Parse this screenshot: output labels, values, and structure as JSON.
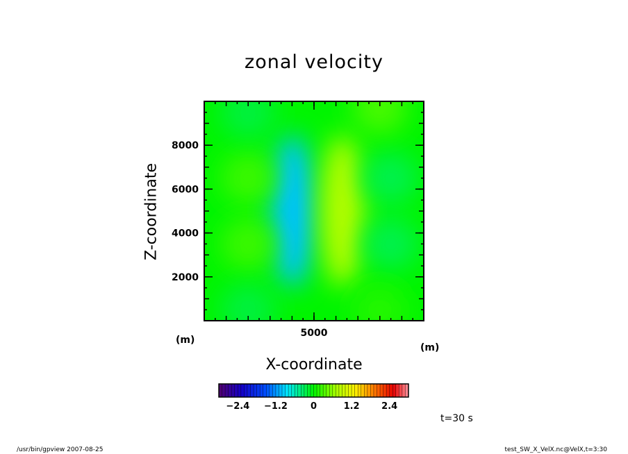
{
  "chart_data": {
    "type": "heatmap",
    "title": "zonal velocity",
    "xlabel": "X-coordinate",
    "ylabel": "Z-coordinate",
    "x_unit": "(m)",
    "y_unit": "(m)",
    "x_ticks": [
      5000
    ],
    "y_ticks": [
      2000,
      4000,
      6000,
      8000
    ],
    "xlim": [
      0,
      10000
    ],
    "ylim": [
      0,
      10000
    ],
    "colorbar": {
      "ticks": [
        "-2.4",
        "-1.2",
        "0",
        "1.2",
        "2.4"
      ],
      "range": [
        -3.0,
        3.0
      ],
      "colormap": "rainbow"
    },
    "features": [
      {
        "x": 4000,
        "z": 5000,
        "value": -1.0
      },
      {
        "x": 6300,
        "z": 5000,
        "value": 0.8
      },
      {
        "x": 2000,
        "z": 6500,
        "value": 0.25
      },
      {
        "x": 2000,
        "z": 3500,
        "value": 0.25
      },
      {
        "x": 8500,
        "z": 6500,
        "value": -0.25
      },
      {
        "x": 8500,
        "z": 3500,
        "value": -0.25
      },
      {
        "x": 2000,
        "z": 9500,
        "value": -0.2
      },
      {
        "x": 8000,
        "z": 9700,
        "value": 0.3
      },
      {
        "x": 2000,
        "z": 500,
        "value": -0.2
      },
      {
        "x": 8000,
        "z": 500,
        "value": 0.15
      }
    ]
  },
  "annotations": {
    "time": "t=30 s",
    "footer_left": "/usr/bin/gpview   2007-08-25",
    "footer_right": "test_SW_X_VelX.nc@VelX,t=3:30"
  }
}
